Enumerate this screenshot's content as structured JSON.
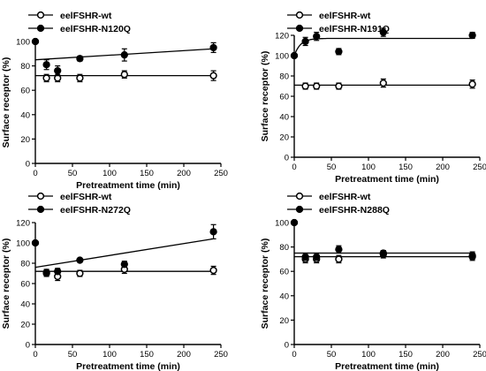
{
  "chart_data": [
    {
      "type": "scatter",
      "xlabel": "Pretreatment time (min)",
      "ylabel": "Surface receptor (%)",
      "xlim": [
        0,
        250
      ],
      "ylim": [
        0,
        100
      ],
      "xticks": [
        0,
        50,
        100,
        150,
        200,
        250
      ],
      "yticks": [
        0,
        20,
        40,
        60,
        80,
        100
      ],
      "legend_position": "top-left",
      "series": [
        {
          "name": "eelFSHR-wt",
          "marker": "open-circle",
          "x": [
            0,
            15,
            30,
            60,
            120,
            240
          ],
          "y": [
            100,
            70,
            70,
            70,
            73,
            72
          ],
          "err": [
            0,
            3,
            3,
            3,
            3,
            4
          ],
          "fit": {
            "kind": "line",
            "x0": 0,
            "y0": 72,
            "x1": 240,
            "y1": 72
          }
        },
        {
          "name": "eelFSHR-N120Q",
          "marker": "filled-circle",
          "x": [
            0,
            15,
            30,
            60,
            120,
            240
          ],
          "y": [
            100,
            81,
            76,
            86,
            89,
            95
          ],
          "err": [
            0,
            4,
            4,
            2,
            5,
            4
          ],
          "fit": {
            "kind": "line",
            "x0": 0,
            "y0": 85,
            "x1": 240,
            "y1": 94
          }
        }
      ]
    },
    {
      "type": "scatter",
      "xlabel": "Pretreatment time (min)",
      "ylabel": "Surface receptor (%)",
      "xlim": [
        0,
        250
      ],
      "ylim": [
        0,
        120
      ],
      "xticks": [
        0,
        50,
        100,
        150,
        200,
        250
      ],
      "yticks": [
        0,
        20,
        40,
        60,
        80,
        100,
        120
      ],
      "legend_position": "top-left",
      "series": [
        {
          "name": "eelFSHR-wt",
          "marker": "open-circle",
          "x": [
            0,
            15,
            30,
            60,
            120,
            240
          ],
          "y": [
            100,
            70,
            70,
            70,
            73,
            72
          ],
          "err": [
            0,
            3,
            3,
            3,
            4,
            4
          ],
          "fit": {
            "kind": "line",
            "x0": 0,
            "y0": 71,
            "x1": 240,
            "y1": 71
          }
        },
        {
          "name": "eelFSHR-N191Q",
          "marker": "filled-circle",
          "x": [
            0,
            15,
            30,
            60,
            120,
            240
          ],
          "y": [
            100,
            114,
            119,
            104,
            123,
            120
          ],
          "err": [
            0,
            4,
            4,
            3,
            4,
            3
          ],
          "fit": {
            "kind": "plateau",
            "y0": 100,
            "plateau": 117,
            "k": 0.12
          }
        }
      ]
    },
    {
      "type": "scatter",
      "xlabel": "Pretreatment time (min)",
      "ylabel": "Surface receptor (%)",
      "xlim": [
        0,
        250
      ],
      "ylim": [
        0,
        120
      ],
      "xticks": [
        0,
        50,
        100,
        150,
        200,
        250
      ],
      "yticks": [
        0,
        20,
        40,
        60,
        80,
        100,
        120
      ],
      "legend_position": "top-left",
      "series": [
        {
          "name": "eelFSHR-wt",
          "marker": "open-circle",
          "x": [
            0,
            15,
            30,
            60,
            120,
            240
          ],
          "y": [
            100,
            71,
            67,
            70,
            74,
            73
          ],
          "err": [
            0,
            3,
            4,
            3,
            4,
            4
          ],
          "fit": {
            "kind": "line",
            "x0": 0,
            "y0": 72,
            "x1": 240,
            "y1": 72
          }
        },
        {
          "name": "eelFSHR-N272Q",
          "marker": "filled-circle",
          "x": [
            0,
            15,
            30,
            60,
            120,
            240
          ],
          "y": [
            100,
            70,
            72,
            83,
            79,
            111
          ],
          "err": [
            0,
            3,
            3,
            1,
            3,
            7
          ],
          "fit": {
            "kind": "line",
            "x0": 0,
            "y0": 76,
            "x1": 240,
            "y1": 104
          }
        }
      ]
    },
    {
      "type": "scatter",
      "xlabel": "Pretreatment time (min)",
      "ylabel": "Surface receptor (%)",
      "xlim": [
        0,
        250
      ],
      "ylim": [
        0,
        100
      ],
      "xticks": [
        0,
        50,
        100,
        150,
        200,
        250
      ],
      "yticks": [
        0,
        20,
        40,
        60,
        80,
        100
      ],
      "legend_position": "top-left",
      "series": [
        {
          "name": "eelFSHR-wt",
          "marker": "open-circle",
          "x": [
            0,
            15,
            30,
            60,
            120,
            240
          ],
          "y": [
            100,
            70,
            70,
            70,
            74,
            73
          ],
          "err": [
            0,
            3,
            3,
            3,
            3,
            3
          ],
          "fit": {
            "kind": "line",
            "x0": 0,
            "y0": 72,
            "x1": 240,
            "y1": 72
          }
        },
        {
          "name": "eelFSHR-N288Q",
          "marker": "filled-circle",
          "x": [
            0,
            15,
            30,
            60,
            120,
            240
          ],
          "y": [
            100,
            72,
            72,
            78,
            75,
            72
          ],
          "err": [
            0,
            3,
            3,
            3,
            2,
            3
          ],
          "fit": {
            "kind": "line",
            "x0": 0,
            "y0": 75,
            "x1": 240,
            "y1": 75
          }
        }
      ]
    }
  ]
}
